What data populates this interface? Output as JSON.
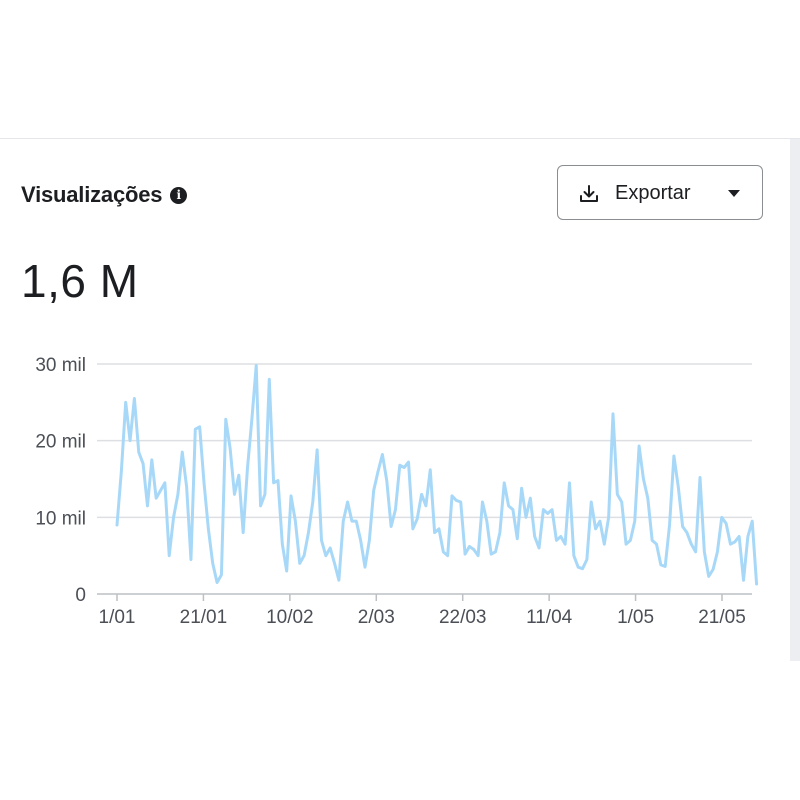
{
  "panel": {
    "title": "Visualizações",
    "info_icon": "info-icon",
    "total": "1,6 M",
    "export": {
      "label": "Exportar",
      "icon": "download-icon",
      "caret_icon": "caret-down-icon"
    }
  },
  "colors": {
    "line": "#a8d8f8",
    "grid": "#dddfe2",
    "axis": "#bcc0c4",
    "text": "#1c1e21"
  },
  "chart_data": {
    "type": "line",
    "title": "Visualizações",
    "xlabel": "",
    "ylabel": "",
    "ylim": [
      0,
      30000
    ],
    "y_ticks": [
      {
        "value": 0,
        "label": "0"
      },
      {
        "value": 10000,
        "label": "10 mil"
      },
      {
        "value": 20000,
        "label": "20 mil"
      },
      {
        "value": 30000,
        "label": "30 mil"
      }
    ],
    "x_ticks": [
      {
        "date": "2025-01-01",
        "label": "1/01"
      },
      {
        "date": "2025-01-21",
        "label": "21/01"
      },
      {
        "date": "2025-02-10",
        "label": "10/02"
      },
      {
        "date": "2025-03-02",
        "label": "2/03"
      },
      {
        "date": "2025-03-22",
        "label": "22/03"
      },
      {
        "date": "2025-04-11",
        "label": "11/04"
      },
      {
        "date": "2025-05-01",
        "label": "1/05"
      },
      {
        "date": "2025-05-21",
        "label": "21/05"
      }
    ],
    "grid": true,
    "legend": "none",
    "series": [
      {
        "x_start": "2025-01-01",
        "x_end": "2025-05-29",
        "values": [
          9000,
          16000,
          25000,
          20000,
          25500,
          18500,
          17000,
          11500,
          17500,
          12500,
          13500,
          14500,
          5000,
          10000,
          13000,
          18500,
          14000,
          4500,
          21500,
          21800,
          14500,
          8500,
          4000,
          1500,
          2500,
          22800,
          19000,
          13000,
          15500,
          8000,
          16500,
          22800,
          29800,
          11500,
          13000,
          28000,
          14500,
          14800,
          6500,
          3000,
          12800,
          9500,
          4000,
          5000,
          8000,
          12000,
          18800,
          7000,
          5000,
          6000,
          4000,
          1800,
          9500,
          12000,
          9500,
          9500,
          7000,
          3500,
          7000,
          13500,
          16000,
          18200,
          14800,
          8800,
          11000,
          16800,
          16500,
          17200,
          8500,
          9800,
          13000,
          11500,
          16200,
          8000,
          8500,
          5500,
          5000,
          12800,
          12200,
          12000,
          5200,
          6200,
          5800,
          5000,
          12000,
          9500,
          5200,
          5500,
          8000,
          14500,
          11500,
          11000,
          7200,
          13800,
          10000,
          12500,
          7500,
          6000,
          11000,
          10500,
          11000,
          7000,
          7500,
          6500,
          14500,
          5000,
          3500,
          3300,
          4500,
          12000,
          8500,
          9500,
          6500,
          10000,
          23500,
          13000,
          12000,
          6500,
          7000,
          9500,
          19300,
          15000,
          12500,
          7000,
          6500,
          3800,
          3600,
          9000,
          18000,
          14000,
          8800,
          8000,
          6500,
          5500,
          15200,
          5500,
          2300,
          3200,
          5500,
          10000,
          9200,
          6500,
          6800,
          7500,
          1800,
          7500,
          9500,
          1300
        ]
      }
    ]
  }
}
